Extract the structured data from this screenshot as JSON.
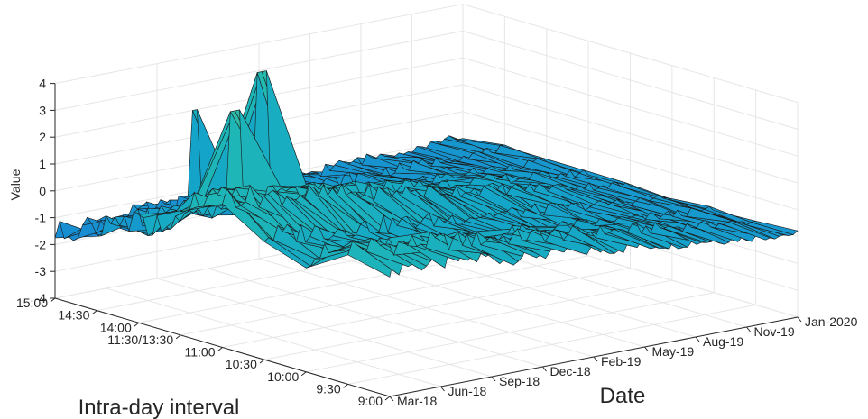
{
  "chart_data": {
    "type": "surface",
    "title": "",
    "xlabel": "Date",
    "ylabel": "Intra-day interval",
    "zlabel": "Value",
    "date_ticks": [
      "Mar-18",
      "Jun-18",
      "Sep-18",
      "Dec-18",
      "Feb-19",
      "May-19",
      "Aug-19",
      "Nov-19",
      "Jan-2020"
    ],
    "interval_ticks": [
      "9:00",
      "9:30",
      "10:00",
      "10:30",
      "11:00",
      "11:30/13:30",
      "14:00",
      "14:30",
      "15:00"
    ],
    "z_ticks": [
      "-4",
      "-3",
      "-2",
      "-1",
      "0",
      "1",
      "2",
      "3",
      "4"
    ],
    "zlim": [
      -4,
      4
    ],
    "grid": true,
    "colormap": [
      "#2c3fd6",
      "#1b7fd8",
      "#14a6c8",
      "#1fb8b5",
      "#45c08f"
    ],
    "edge_color": "#1a1a1a",
    "series": [
      {
        "interval": "9:00",
        "start": 0.9,
        "end": -0.9
      },
      {
        "interval": "9:30",
        "start": 1.1,
        "end": -0.9
      },
      {
        "interval": "10:00",
        "start": 0.3,
        "end": -0.9
      },
      {
        "interval": "10:30",
        "start": 0.6,
        "end": -0.9
      },
      {
        "interval": "11:00",
        "start": 1.6,
        "end": -0.9
      },
      {
        "interval": "11:30/13:30",
        "start": 1.0,
        "end": -0.9
      },
      {
        "interval": "14:00",
        "start": -0.4,
        "end": -0.9
      },
      {
        "interval": "14:30",
        "start": -0.9,
        "end": -0.9
      },
      {
        "interval": "15:00",
        "start": -1.6,
        "end": -0.9
      }
    ]
  }
}
